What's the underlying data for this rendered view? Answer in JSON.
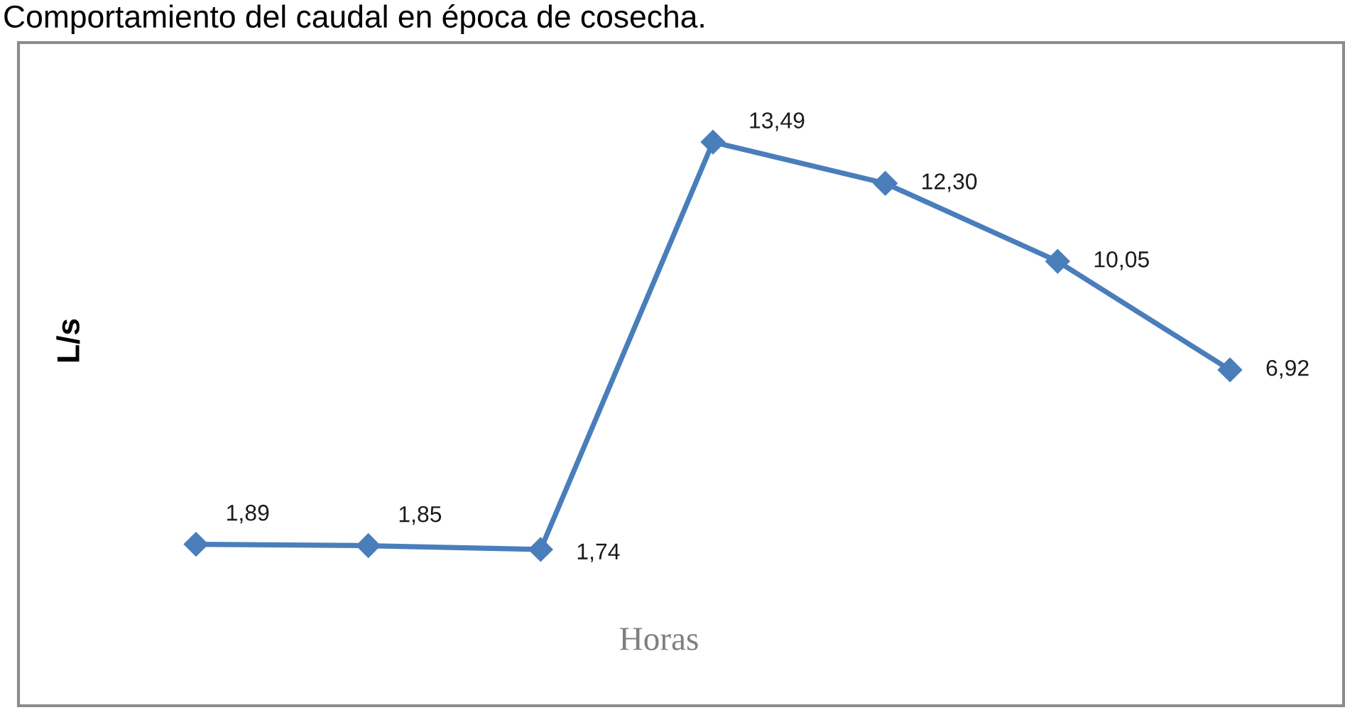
{
  "chart_data": {
    "type": "line",
    "title": "Comportamiento del caudal en época de cosecha.",
    "xlabel": "Horas",
    "ylabel": "L/s",
    "categories": [
      null,
      null,
      null,
      null,
      null,
      null,
      null
    ],
    "series": [
      {
        "color": "#4a7ebb",
        "values": [
          1.89,
          1.85,
          1.74,
          13.49,
          12.3,
          10.05,
          6.92
        ],
        "value_labels": [
          "1,89",
          "1,85",
          "1,74",
          "13,49",
          "12,30",
          "10,05",
          "6,92"
        ]
      }
    ],
    "marker": "diamond",
    "line_style": "solid"
  }
}
